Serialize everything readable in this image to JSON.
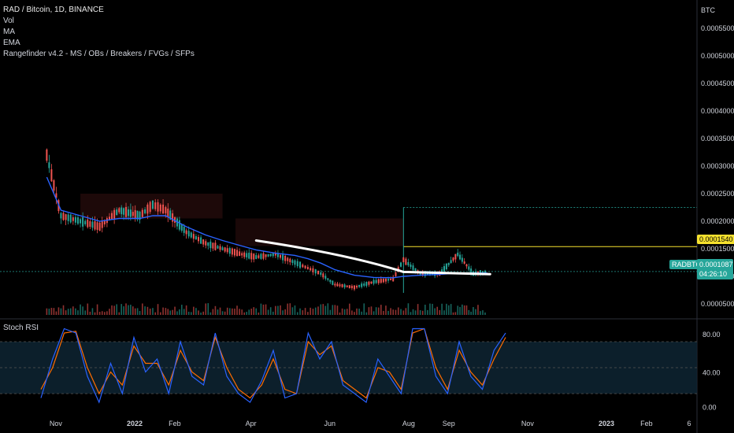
{
  "legend": {
    "title": "RAD / Bitcoin, 1D, BINANCE",
    "indicators": [
      "Vol",
      "MA",
      "EMA",
      "Rangefinder v4.2 - MS / OBs / Breakers / FVGs / SFPs"
    ]
  },
  "currency": "BTC",
  "price_tags": {
    "level": "0.0001540",
    "symbol": "RADBTC",
    "last": "0.0001087",
    "countdown": "04:26:10"
  },
  "rsi_label": "Stoch RSI",
  "colors": {
    "background": "#000000",
    "up": "#26a69a",
    "down": "#ef5350",
    "ma": "#2962ff",
    "level": "#f5e12e",
    "rsi_k": "#2962ff",
    "rsi_d": "#ff6d00",
    "drawing": "#ffffff"
  },
  "chart_data": [
    {
      "type": "line",
      "name": "price",
      "x_ticks": [
        "Nov",
        "2022",
        "Feb",
        "Apr",
        "Jun",
        "Aug",
        "Sep",
        "Nov",
        "2023",
        "Feb",
        "6"
      ],
      "y_ticks": [
        "0.0005500",
        "0.0005000",
        "0.0004500",
        "0.0004000",
        "0.0003500",
        "0.0003000",
        "0.0002500",
        "0.0002000",
        "0.0001500",
        "0.0001000",
        "0.0000500"
      ],
      "ylim": [
        3e-05,
        0.00058
      ],
      "x": [
        "2021-10-25",
        "2021-11-05",
        "2021-11-20",
        "2021-12-05",
        "2021-12-20",
        "2022-01-05",
        "2022-01-15",
        "2022-01-25",
        "2022-02-10",
        "2022-02-25",
        "2022-03-10",
        "2022-03-25",
        "2022-04-05",
        "2022-04-20",
        "2022-05-05",
        "2022-05-15",
        "2022-05-25",
        "2022-06-05",
        "2022-06-20",
        "2022-07-05",
        "2022-07-20",
        "2022-07-28",
        "2022-08-10",
        "2022-08-25",
        "2022-09-08",
        "2022-09-20",
        "2022-10-01"
      ],
      "series": [
        {
          "values": [
            0.00032,
            0.00021,
            0.0002,
            0.00019,
            0.00022,
            0.00021,
            0.00023,
            0.00022,
            0.00018,
            0.00016,
            0.00015,
            0.00014,
            0.000135,
            0.00014,
            0.000125,
            0.000115,
            0.000105,
            8.5e-05,
            8e-05,
            9e-05,
            9.5e-05,
            0.00013,
            0.000105,
            0.000105,
            0.00014,
            0.000105,
            0.0001087
          ]
        },
        {
          "values": [
            0.00028,
            0.00022,
            0.00021,
            0.0002,
            0.000205,
            0.000205,
            0.00021,
            0.00021,
            0.00019,
            0.000175,
            0.000165,
            0.000155,
            0.000148,
            0.000142,
            0.000138,
            0.000132,
            0.000124,
            0.000112,
            0.000102,
            9.8e-05,
            9.75e-05,
            0.0001,
            0.000102,
            0.0001035,
            0.000106,
            0.000106,
            0.000106
          ]
        }
      ],
      "levels": [
        0.000154,
        0.0001087
      ]
    },
    {
      "type": "line",
      "name": "stoch_rsi",
      "y_ticks": [
        "80.00",
        "40.00",
        "0.00"
      ],
      "ylim": [
        0,
        100
      ],
      "k": [
        15,
        60,
        95,
        90,
        40,
        10,
        55,
        20,
        85,
        45,
        60,
        20,
        80,
        40,
        30,
        90,
        40,
        20,
        10,
        35,
        70,
        15,
        20,
        90,
        60,
        80,
        30,
        20,
        10,
        60,
        40,
        20,
        95,
        95,
        40,
        20,
        80,
        40,
        25,
        70,
        90
      ],
      "d": [
        25,
        50,
        90,
        92,
        50,
        20,
        45,
        30,
        75,
        55,
        55,
        30,
        70,
        45,
        35,
        85,
        50,
        25,
        15,
        30,
        60,
        25,
        20,
        80,
        65,
        75,
        35,
        25,
        15,
        50,
        45,
        25,
        90,
        95,
        50,
        25,
        70,
        45,
        30,
        60,
        85
      ]
    }
  ]
}
